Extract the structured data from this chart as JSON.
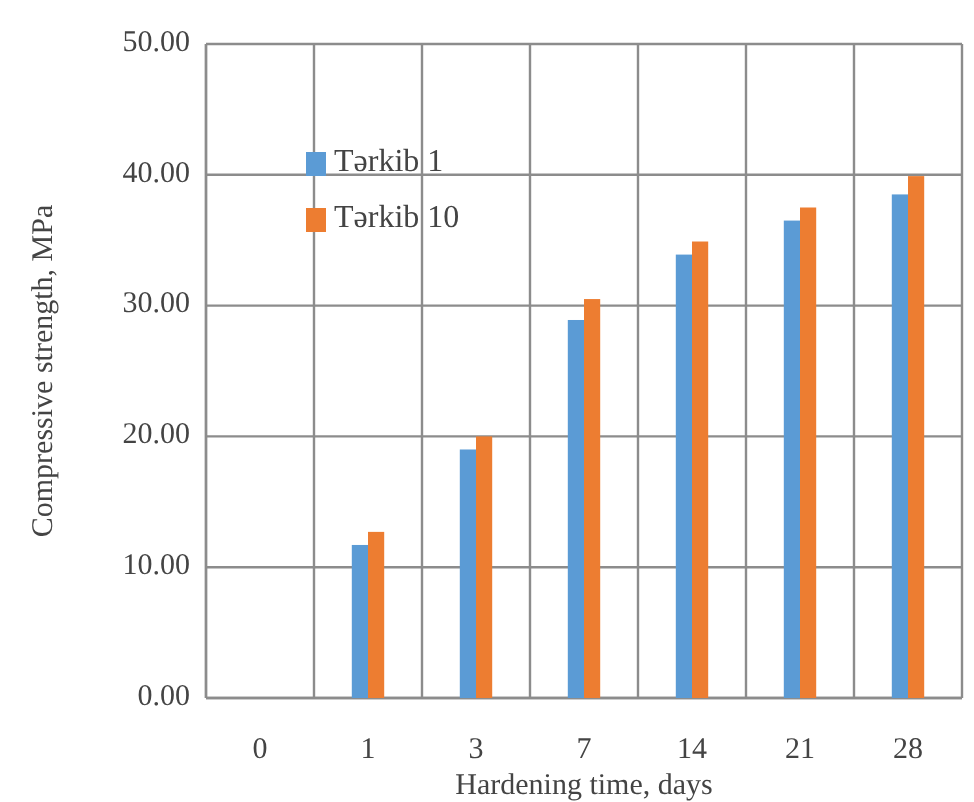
{
  "chart_data": {
    "type": "bar",
    "xlabel": "Hardening time, days",
    "ylabel": "Compressive strength, MPa",
    "categories": [
      "0",
      "1",
      "3",
      "7",
      "14",
      "21",
      "28"
    ],
    "series": [
      {
        "name": "Tərkib 1",
        "color": "#5b9bd5",
        "values": [
          null,
          11.7,
          19.0,
          28.9,
          33.9,
          36.5,
          38.5
        ]
      },
      {
        "name": "Tərkib 10",
        "color": "#ed7d31",
        "values": [
          null,
          12.7,
          20.0,
          30.5,
          34.9,
          37.5,
          39.9
        ]
      }
    ],
    "ylim": [
      0,
      50
    ],
    "yticks": [
      {
        "value": 0,
        "label": "0.00"
      },
      {
        "value": 10,
        "label": "10.00"
      },
      {
        "value": 20,
        "label": "20.00"
      },
      {
        "value": 30,
        "label": "30.00"
      },
      {
        "value": 40,
        "label": "40.00"
      },
      {
        "value": 50,
        "label": "50.00"
      }
    ],
    "grid": true,
    "legend": "top left"
  }
}
